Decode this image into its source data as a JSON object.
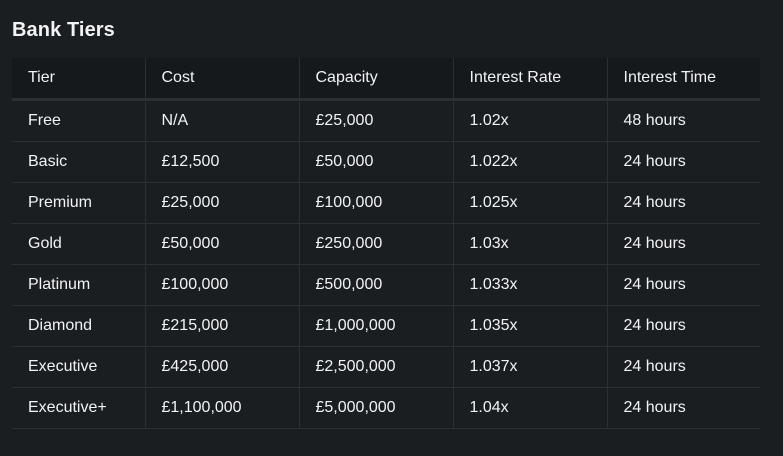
{
  "title": "Bank Tiers",
  "table": {
    "headers": [
      "Tier",
      "Cost",
      "Capacity",
      "Interest Rate",
      "Interest Time"
    ],
    "rows": [
      [
        "Free",
        "N/A",
        "£25,000",
        "1.02x",
        "48 hours"
      ],
      [
        "Basic",
        "£12,500",
        "£50,000",
        "1.022x",
        "24 hours"
      ],
      [
        "Premium",
        "£25,000",
        "£100,000",
        "1.025x",
        "24 hours"
      ],
      [
        "Gold",
        "£50,000",
        "£250,000",
        "1.03x",
        "24 hours"
      ],
      [
        "Platinum",
        "£100,000",
        "£500,000",
        "1.033x",
        "24 hours"
      ],
      [
        "Diamond",
        "£215,000",
        "£1,000,000",
        "1.035x",
        "24 hours"
      ],
      [
        "Executive",
        "£425,000",
        "£2,500,000",
        "1.037x",
        "24 hours"
      ],
      [
        "Executive+",
        "£1,100,000",
        "£5,000,000",
        "1.04x",
        "24 hours"
      ]
    ]
  }
}
